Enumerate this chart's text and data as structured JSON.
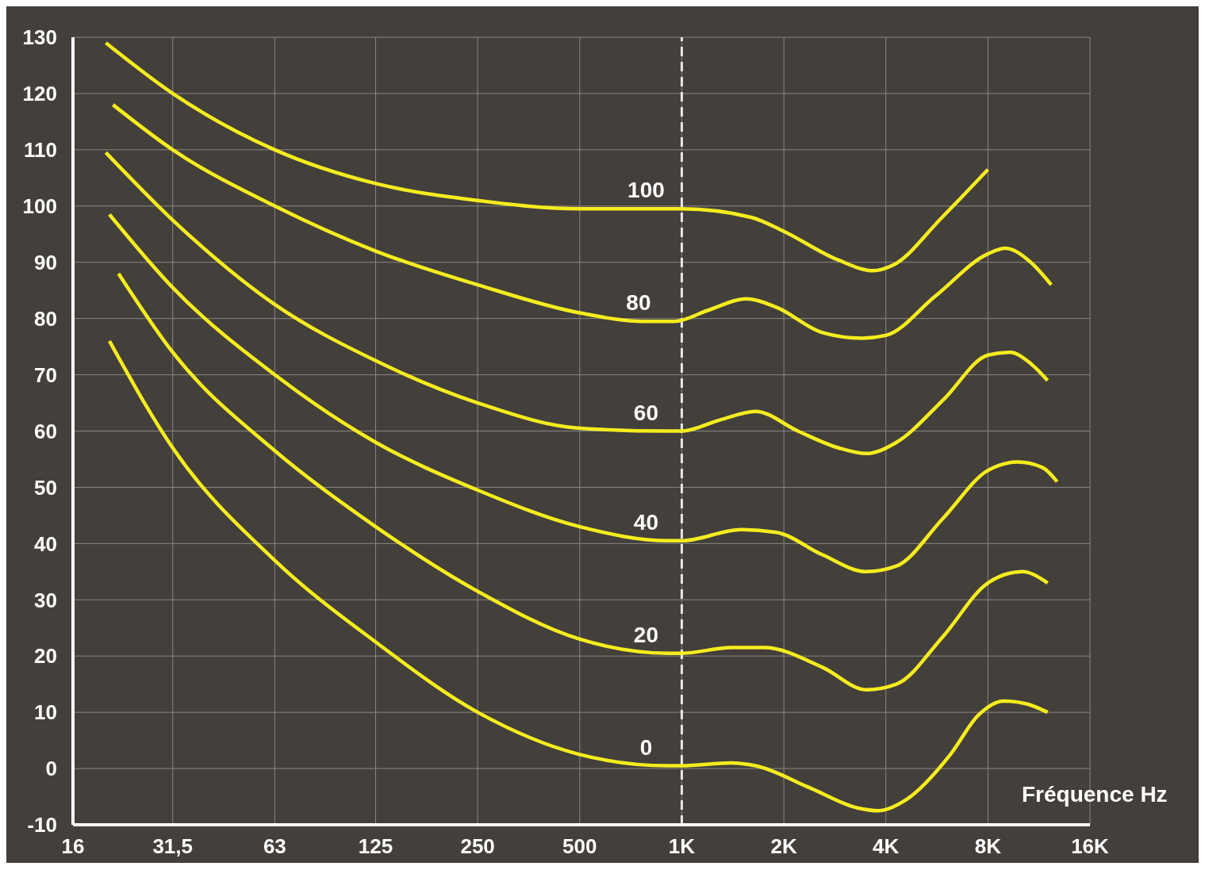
{
  "chart_data": {
    "type": "line",
    "xlabel": "Fréquence Hz",
    "log": "x",
    "grid": true,
    "marker": "none",
    "line_style": "solid",
    "xlim": [
      16,
      16000
    ],
    "ylim": [
      -10,
      130
    ],
    "xticks": [
      16,
      {
        "value": 31.5,
        "label": "31,5"
      },
      63,
      125,
      250,
      500,
      {
        "value": 1000,
        "label": "1K"
      },
      {
        "value": 2000,
        "label": "2K"
      },
      {
        "value": 4000,
        "label": "4K"
      },
      {
        "value": 8000,
        "label": "8K"
      },
      {
        "value": 16000,
        "label": "16K"
      }
    ],
    "yticks": [
      -10,
      0,
      10,
      20,
      30,
      40,
      50,
      60,
      70,
      80,
      90,
      100,
      110,
      120,
      130
    ],
    "ref_lines": [
      {
        "axis": "x",
        "value": 1000,
        "color": "#e6e6e6",
        "line_style": "dashed"
      }
    ],
    "series": [
      {
        "name": "100",
        "color": "#f5ec1e",
        "x": [
          20,
          31.5,
          63,
          125,
          250,
          500,
          1000,
          1600,
          2000,
          2870,
          3670,
          4200,
          5860,
          8000
        ],
        "values": [
          129,
          120,
          110,
          104,
          101,
          99.5,
          99.5,
          98,
          95.5,
          90.5,
          88.5,
          89.5,
          98,
          106.5
        ]
      },
      {
        "name": "80",
        "color": "#f5ec1e",
        "x": [
          21,
          31.5,
          63,
          125,
          250,
          500,
          770,
          950,
          1200,
          1550,
          1900,
          2600,
          3400,
          4000,
          5600,
          8000,
          9000,
          10700,
          12300
        ],
        "values": [
          118,
          110,
          100,
          92,
          86,
          81,
          79.5,
          79.5,
          81.5,
          83.5,
          82,
          77.5,
          76.5,
          77,
          84,
          91.5,
          92.5,
          90,
          86
        ]
      },
      {
        "name": "60",
        "color": "#f5ec1e",
        "x": [
          20,
          31.5,
          63,
          125,
          250,
          500,
          910,
          1000,
          1300,
          1650,
          2200,
          2900,
          3500,
          4300,
          5900,
          8000,
          9300,
          10700,
          12000
        ],
        "values": [
          109.5,
          97.5,
          82.5,
          72.5,
          65,
          60.5,
          60,
          60,
          62,
          63.5,
          60,
          57,
          56,
          58,
          65.5,
          73.5,
          74,
          72,
          69
        ]
      },
      {
        "name": "40",
        "color": "#f5ec1e",
        "x": [
          20.5,
          31.5,
          63,
          125,
          250,
          500,
          910,
          1000,
          1500,
          1900,
          2600,
          3500,
          4300,
          5900,
          8000,
          9800,
          11600,
          12800
        ],
        "values": [
          98.5,
          85.5,
          70,
          58,
          49.5,
          43,
          40.5,
          40.5,
          42.5,
          42,
          38,
          35,
          36,
          44.5,
          53,
          54.5,
          53.5,
          51
        ]
      },
      {
        "name": "20",
        "color": "#f5ec1e",
        "x": [
          21.8,
          31.5,
          63,
          125,
          250,
          500,
          910,
          1000,
          1400,
          1750,
          2600,
          3500,
          4300,
          5900,
          8000,
          10100,
          12000
        ],
        "values": [
          88,
          74,
          56.5,
          43,
          31.5,
          23,
          20.5,
          20.5,
          21.5,
          21.5,
          18,
          14,
          15,
          23.5,
          33,
          35,
          33
        ]
      },
      {
        "name": "0",
        "color": "#f5ec1e",
        "x": [
          20.5,
          31.5,
          63,
          125,
          250,
          500,
          910,
          1000,
          1400,
          1650,
          2400,
          3300,
          3800,
          4600,
          6200,
          7500,
          8900,
          10400,
          12000
        ],
        "values": [
          76,
          57,
          37,
          22.5,
          10,
          2.5,
          0.5,
          0.5,
          1,
          0.5,
          -3.5,
          -7,
          -7.5,
          -5.5,
          2.5,
          9.5,
          12,
          11.5,
          10
        ]
      }
    ]
  }
}
